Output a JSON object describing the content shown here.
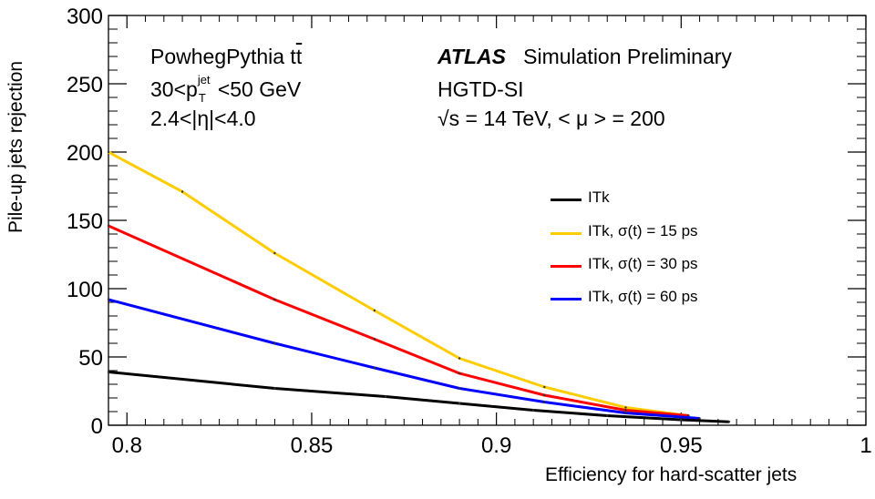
{
  "chart_data": {
    "type": "line",
    "title": "",
    "xlabel": "Efficiency for hard-scatter jets",
    "ylabel": "Pile-up jets rejection",
    "xlim": [
      0.795,
      1.0
    ],
    "ylim": [
      0,
      300
    ],
    "xticks": [
      0.8,
      0.85,
      0.9,
      0.95,
      1.0
    ],
    "xtick_labels": [
      "0.8",
      "0.85",
      "0.9",
      "0.95",
      "1"
    ],
    "yticks": [
      0,
      50,
      100,
      150,
      200,
      250,
      300
    ],
    "ytick_labels": [
      "0",
      "50",
      "100",
      "150",
      "200",
      "250",
      "300"
    ],
    "series": [
      {
        "name": "ITk",
        "color": "#000000",
        "x": [
          0.795,
          0.84,
          0.87,
          0.89,
          0.91,
          0.93,
          0.95,
          0.963
        ],
        "y": [
          39,
          27,
          21,
          16,
          11,
          7,
          4,
          2.5
        ]
      },
      {
        "name": "ITk, σ(t) = 15 ps",
        "color": "#ffcc00",
        "x": [
          0.795,
          0.815,
          0.84,
          0.867,
          0.89,
          0.913,
          0.935,
          0.952
        ],
        "y": [
          200,
          171,
          126,
          84,
          49,
          28,
          13,
          7
        ]
      },
      {
        "name": "ITk, σ(t) = 30 ps",
        "color": "#ff0000",
        "x": [
          0.795,
          0.84,
          0.867,
          0.89,
          0.913,
          0.935,
          0.952
        ],
        "y": [
          146,
          92,
          63,
          38,
          22,
          11,
          7
        ]
      },
      {
        "name": "ITk, σ(t) = 60 ps",
        "color": "#0000ff",
        "x": [
          0.795,
          0.84,
          0.867,
          0.89,
          0.913,
          0.935,
          0.955
        ],
        "y": [
          92,
          60,
          42,
          27,
          17,
          9,
          5
        ]
      }
    ],
    "annotations": {
      "left": [
        "PowhegPythia t",
        "t",
        "30<p",
        "jet",
        "T",
        "<50 GeV",
        "2.4<|η|<4.0"
      ],
      "atlas": "ATLAS",
      "atlas_suffix": "Simulation Preliminary",
      "detector": "HGTD-SI",
      "energy": "√s = 14 TeV, < μ > = 200"
    },
    "legend": {
      "position": "center-right"
    }
  }
}
